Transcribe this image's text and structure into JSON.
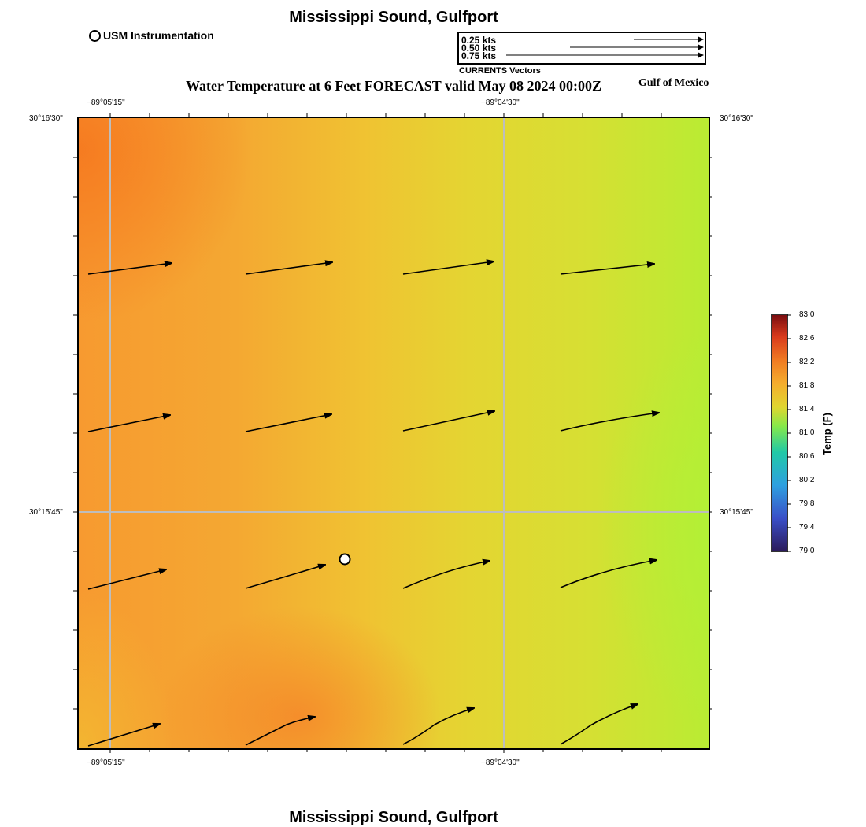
{
  "title": "Mississippi Sound, Gulfport",
  "footer_title": "Mississippi Sound, Gulfport",
  "subtitle": "Water Temperature at 6 Feet FORECAST valid May 08 2024 00:00Z",
  "region_label": "Gulf of Mexico",
  "legend": {
    "usm_marker_label": "USM Instrumentation",
    "vector_scale": [
      {
        "label": "0.25 kts",
        "speed_kts": 0.25
      },
      {
        "label": "0.50 kts",
        "speed_kts": 0.5
      },
      {
        "label": "0.75 kts",
        "speed_kts": 0.75
      }
    ],
    "vector_caption": "CURRENTS Vectors"
  },
  "axes": {
    "top_lon_ticks": [
      "−89°05'15\"",
      "−89°04'30\""
    ],
    "bottom_lon_ticks": [
      "−89°05'15\"",
      "−89°04'30\""
    ],
    "left_lat_ticks": [
      "30°16'30\"",
      "30°15'45\""
    ],
    "right_lat_ticks": [
      "30°16'30\"",
      "30°15'45\""
    ]
  },
  "colorbar": {
    "label": "Temp (F)",
    "min": 79.0,
    "max": 83.0,
    "ticks": [
      "83.0",
      "82.6",
      "82.2",
      "81.8",
      "81.4",
      "81.0",
      "80.6",
      "80.2",
      "79.8",
      "79.4",
      "79.0"
    ],
    "colors": [
      "#2b1a5a",
      "#3a4fc8",
      "#2ea0e0",
      "#21c9a6",
      "#86e84a",
      "#e0d630",
      "#f4ad2e",
      "#f07a22",
      "#d8391c",
      "#7a0d10"
    ]
  },
  "colors": {
    "grid": "#bdbdbd",
    "vector": "#000000",
    "marker_fill": "#ffffff"
  }
}
